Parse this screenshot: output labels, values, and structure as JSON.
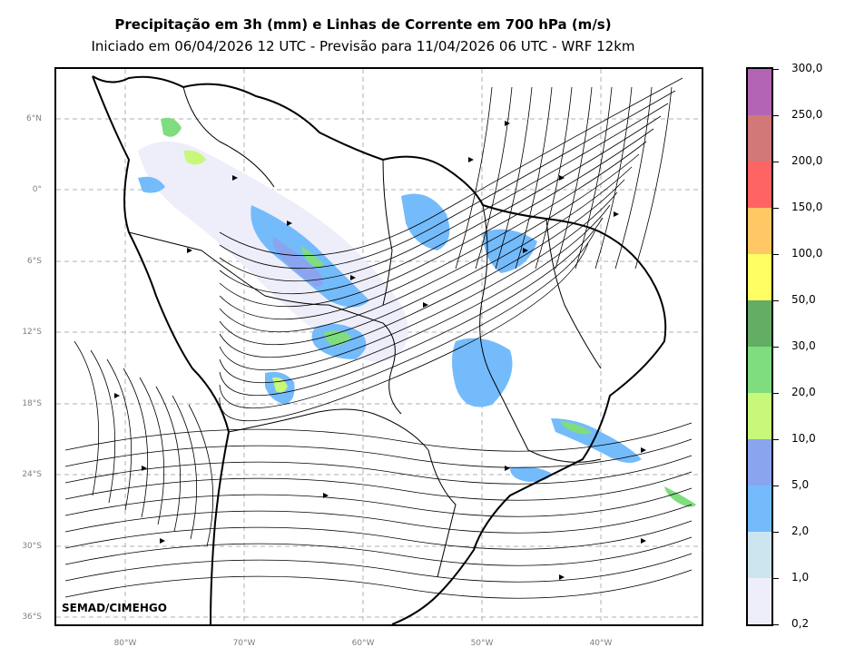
{
  "header": {
    "title": "Precipitação em 3h (mm) e Linhas de Corrente em 700 hPa (m/s)",
    "subtitle": "Iniciado em 06/04/2026 12 UTC - Previsão para 11/04/2026 06 UTC - WRF 12km"
  },
  "map": {
    "lat_ticks": [
      "6°N",
      "0°",
      "6°S",
      "12°S",
      "18°S",
      "24°S",
      "30°S",
      "36°S"
    ],
    "lon_ticks": [
      "80°W",
      "70°W",
      "60°W",
      "50°W",
      "40°W"
    ],
    "credit": "SEMAD/CIMEHGO"
  },
  "colorbar": {
    "levels": [
      "0,2",
      "1,0",
      "2,0",
      "5,0",
      "10,0",
      "20,0",
      "30,0",
      "50,0",
      "100,0",
      "150,0",
      "200,0",
      "250,0",
      "300,0"
    ],
    "colors": [
      "#eeeefa",
      "#cde5ef",
      "#74bbfc",
      "#8ba4f0",
      "#c8f87a",
      "#7fdc7f",
      "#64ad64",
      "#ffff64",
      "#ffc864",
      "#ff6464",
      "#d27878",
      "#b464b4"
    ]
  }
}
